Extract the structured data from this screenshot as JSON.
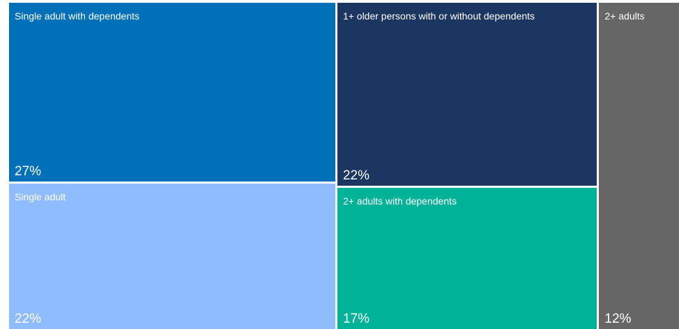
{
  "chart_data": {
    "type": "treemap",
    "title": "",
    "tiles": [
      {
        "label": "Single adult with dependents",
        "value": 27,
        "display": "27%",
        "color": "#0070b8"
      },
      {
        "label": "Single adult",
        "value": 22,
        "display": "22%",
        "color": "#8fbcfc"
      },
      {
        "label": "1+ older persons with or without dependents",
        "value": 22,
        "display": "22%",
        "color": "#1b3660"
      },
      {
        "label": "2+ adults with dependents",
        "value": 17,
        "display": "17%",
        "color": "#00b398"
      },
      {
        "label": "2+ adults",
        "value": 12,
        "display": "12%",
        "color": "#666666"
      }
    ]
  }
}
